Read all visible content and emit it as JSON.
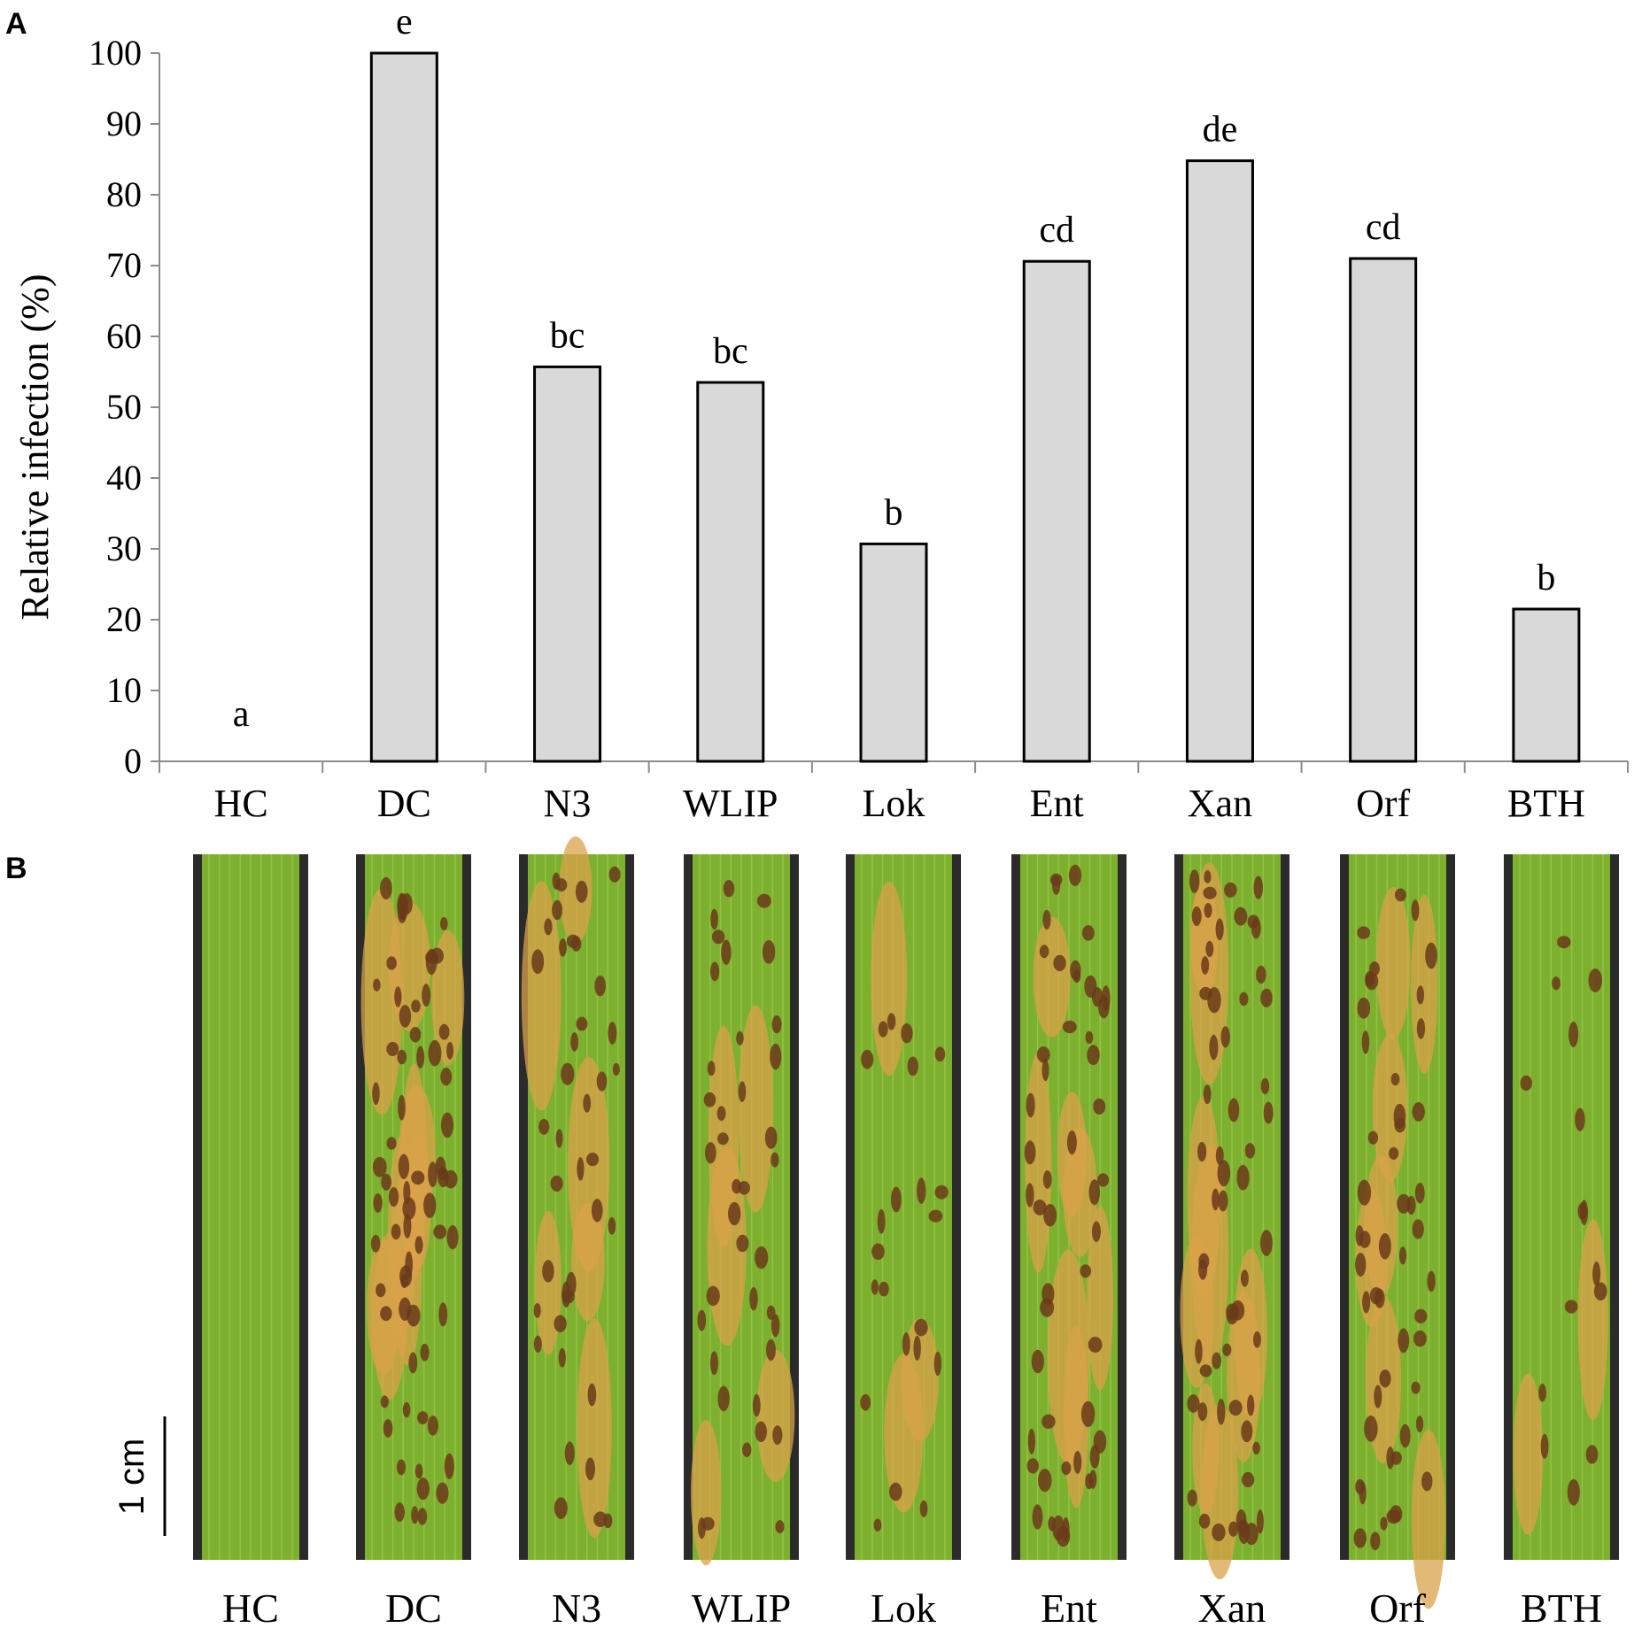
{
  "panels": {
    "a": "A",
    "b": "B"
  },
  "chart_data": {
    "type": "bar",
    "title": "",
    "xlabel": "",
    "ylabel": "Relative infection (%)",
    "ylim": [
      0,
      100
    ],
    "yticks": [
      0,
      10,
      20,
      30,
      40,
      50,
      60,
      70,
      80,
      90,
      100
    ],
    "categories": [
      "HC",
      "DC",
      "N3",
      "WLIP",
      "Lok",
      "Ent",
      "Xan",
      "Orf",
      "BTH"
    ],
    "values": [
      0,
      100,
      55.7,
      53.5,
      30.7,
      70.6,
      84.8,
      71.0,
      21.5
    ],
    "significance": [
      "a",
      "e",
      "bc",
      "bc",
      "b",
      "cd",
      "de",
      "cd",
      "b"
    ],
    "bar_color": "#d9d9d9",
    "bar_edge_color": "#000000"
  },
  "leaves": {
    "labels": [
      "HC",
      "DC",
      "N3",
      "WLIP",
      "Lok",
      "Ent",
      "Xan",
      "Orf",
      "BTH"
    ],
    "infection_fraction": [
      0,
      1,
      0.56,
      0.54,
      0.31,
      0.71,
      0.85,
      0.71,
      0.22
    ],
    "scale_bar": "1 cm",
    "leaf_color": "#7db02e",
    "lesion_color": "#6b3a1a",
    "chlorosis_color": "#d9a24a"
  }
}
